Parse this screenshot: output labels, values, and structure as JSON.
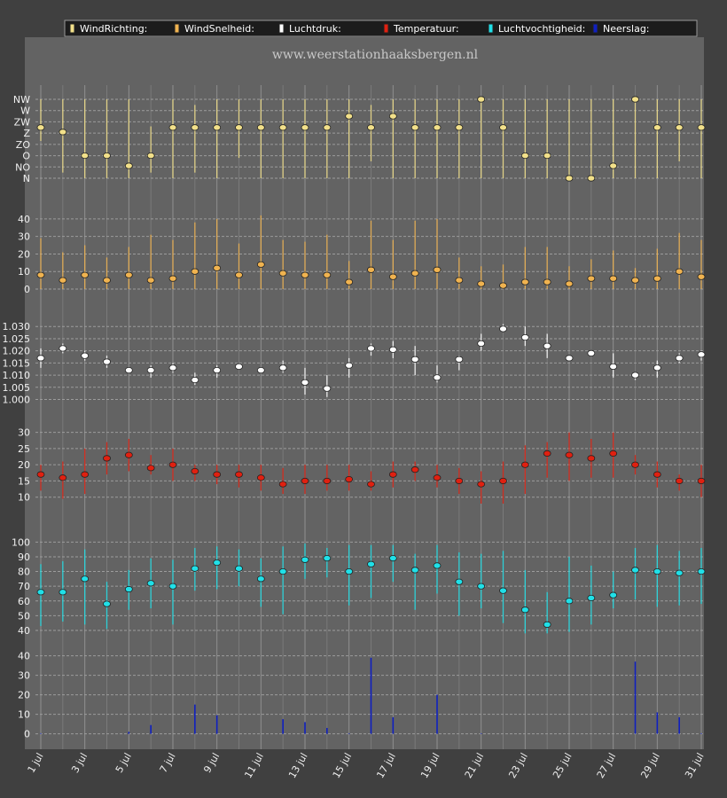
{
  "site_title": "www.weerstationhaaksbergen.nl",
  "legend": [
    {
      "label": "WindRichting:",
      "color": "#f2e08a"
    },
    {
      "label": "WindSnelheid:",
      "color": "#f0b350"
    },
    {
      "label": "Luchtdruk:",
      "color": "#ffffff"
    },
    {
      "label": "Temperatuur:",
      "color": "#e02010"
    },
    {
      "label": "Luchtvochtigheid:",
      "color": "#20e0e8"
    },
    {
      "label": "Neerslag:",
      "color": "#1020c0"
    }
  ],
  "x_tick_labels": [
    "1 jul",
    "3 jul",
    "5 jul",
    "7 jul",
    "9 jul",
    "11 jul",
    "13 jul",
    "15 jul",
    "17 jul",
    "19 jul",
    "21 jul",
    "23 jul",
    "25 jul",
    "27 jul",
    "29 jul",
    "31 jul"
  ],
  "chart_data": [
    {
      "type": "scatter",
      "name": "WindRichting",
      "x": [
        1,
        2,
        3,
        4,
        5,
        6,
        7,
        8,
        9,
        10,
        11,
        12,
        13,
        14,
        15,
        16,
        17,
        18,
        19,
        20,
        21,
        22,
        23,
        24,
        25,
        26,
        27,
        28,
        29,
        30,
        31
      ],
      "y_tick_labels": [
        "N",
        "NO",
        "O",
        "ZO",
        "Z",
        "ZW",
        "W",
        "NW"
      ],
      "ylim": [
        0,
        7
      ],
      "values": [
        4.5,
        4.1,
        2,
        2,
        1.1,
        2,
        4.5,
        4.5,
        4.5,
        4.5,
        4.5,
        4.5,
        4.5,
        4.5,
        5.5,
        4.5,
        5.5,
        4.5,
        4.5,
        4.5,
        7,
        4.5,
        2,
        2,
        0,
        0,
        1.1,
        7,
        4.5,
        4.5,
        4.5
      ],
      "low": [
        3.3,
        0.5,
        0,
        0,
        0,
        0.5,
        0,
        0.5,
        0,
        1.8,
        0,
        0,
        0,
        0,
        0,
        1.5,
        0,
        0,
        0,
        0,
        0,
        0,
        0,
        0,
        0,
        0,
        0,
        0,
        0,
        1.5,
        0
      ],
      "high": [
        7,
        7,
        7,
        7,
        7,
        4.6,
        7,
        6.5,
        7,
        7,
        7,
        7,
        7,
        7,
        7,
        6.5,
        7,
        7,
        7,
        7,
        7,
        7,
        7,
        7,
        7,
        7,
        7,
        7,
        7,
        7,
        7
      ],
      "color": "#f2e08a"
    },
    {
      "type": "scatter",
      "name": "WindSnelheid",
      "x": [
        1,
        2,
        3,
        4,
        5,
        6,
        7,
        8,
        9,
        10,
        11,
        12,
        13,
        14,
        15,
        16,
        17,
        18,
        19,
        20,
        21,
        22,
        23,
        24,
        25,
        26,
        27,
        28,
        29,
        30,
        31
      ],
      "yticks": [
        0,
        10,
        20,
        30,
        40
      ],
      "ylim": [
        0,
        45
      ],
      "values": [
        8,
        5,
        8,
        5,
        8,
        5,
        6,
        10,
        12,
        8,
        14,
        9,
        8,
        8,
        4,
        11,
        7,
        9,
        11,
        5,
        3,
        2,
        4,
        4,
        3,
        6,
        6,
        5,
        6,
        10,
        7
      ],
      "low": [
        0,
        0,
        0,
        0,
        0,
        0,
        0,
        0,
        0,
        0,
        0,
        0,
        0,
        0,
        0,
        0,
        0,
        0,
        0,
        0,
        0,
        0,
        0,
        0,
        0,
        0,
        0,
        0,
        0,
        0,
        0
      ],
      "high": [
        29,
        21,
        25,
        18,
        24,
        31,
        28,
        38,
        40,
        26,
        42,
        28,
        27,
        31,
        16,
        39,
        28,
        39,
        40,
        18,
        13,
        14,
        24,
        24,
        13,
        17,
        22,
        12,
        23,
        32,
        28
      ],
      "color": "#f0b350"
    },
    {
      "type": "scatter",
      "name": "Luchtdruk",
      "x": [
        1,
        2,
        3,
        4,
        5,
        6,
        7,
        8,
        9,
        10,
        11,
        12,
        13,
        14,
        15,
        16,
        17,
        18,
        19,
        20,
        21,
        22,
        23,
        24,
        25,
        26,
        27,
        28,
        29,
        30,
        31
      ],
      "yticks": [
        1.0,
        1.005,
        1.01,
        1.015,
        1.02,
        1.025,
        1.03
      ],
      "ylim": [
        0.998,
        1.033
      ],
      "values": [
        1.017,
        1.021,
        1.018,
        1.0155,
        1.012,
        1.012,
        1.013,
        1.008,
        1.012,
        1.0135,
        1.012,
        1.013,
        1.007,
        1.0045,
        1.014,
        1.021,
        1.0205,
        1.0165,
        1.009,
        1.0165,
        1.023,
        1.029,
        1.0255,
        1.022,
        1.017,
        1.019,
        1.0135,
        1.01,
        1.013,
        1.017,
        1.0185
      ],
      "low": [
        1.013,
        1.019,
        1.016,
        1.013,
        1.011,
        1.009,
        1.011,
        1.006,
        1.009,
        1.013,
        1.011,
        1.011,
        1.002,
        1.001,
        1.009,
        1.018,
        1.017,
        1.01,
        1.007,
        1.012,
        1.02,
        1.028,
        1.022,
        1.017,
        1.016,
        1.018,
        1.009,
        1.008,
        1.009,
        1.015,
        1.016
      ],
      "high": [
        1.021,
        1.023,
        1.02,
        1.018,
        1.013,
        1.014,
        1.015,
        1.011,
        1.014,
        1.014,
        1.013,
        1.016,
        1.013,
        1.01,
        1.017,
        1.023,
        1.024,
        1.022,
        1.014,
        1.018,
        1.027,
        1.031,
        1.03,
        1.027,
        1.018,
        1.02,
        1.019,
        1.011,
        1.016,
        1.019,
        1.02
      ],
      "color": "#ffffff"
    },
    {
      "type": "scatter",
      "name": "Temperatuur",
      "x": [
        1,
        2,
        3,
        4,
        5,
        6,
        7,
        8,
        9,
        10,
        11,
        12,
        13,
        14,
        15,
        16,
        17,
        18,
        19,
        20,
        21,
        22,
        23,
        24,
        25,
        26,
        27,
        28,
        29,
        30,
        31
      ],
      "yticks": [
        10,
        15,
        20,
        25,
        30
      ],
      "ylim": [
        8,
        31
      ],
      "values": [
        17,
        16,
        17,
        22,
        23,
        19,
        20,
        18,
        17,
        17,
        16,
        14,
        15,
        15,
        15.5,
        14,
        17,
        18.5,
        16,
        15,
        14,
        15,
        20,
        23.5,
        23,
        22,
        23.5,
        20,
        17,
        15,
        15
      ],
      "low": [
        12,
        9.5,
        11,
        17,
        18,
        17,
        15,
        15,
        14,
        13,
        12,
        11,
        11,
        12,
        12,
        12,
        13,
        15,
        13,
        11,
        8,
        8,
        11,
        16,
        15,
        16,
        16,
        17,
        13,
        12,
        10
      ],
      "high": [
        20,
        21,
        25,
        27,
        28,
        23,
        25,
        20,
        20,
        20,
        20,
        19,
        20,
        20,
        20,
        18,
        21,
        21,
        20,
        19,
        18,
        21,
        26,
        27,
        30,
        28,
        30,
        23,
        21,
        17,
        20
      ],
      "color": "#e02010"
    },
    {
      "type": "scatter",
      "name": "Luchtvochtigheid",
      "x": [
        1,
        2,
        3,
        4,
        5,
        6,
        7,
        8,
        9,
        10,
        11,
        12,
        13,
        14,
        15,
        16,
        17,
        18,
        19,
        20,
        21,
        22,
        23,
        24,
        25,
        26,
        27,
        28,
        29,
        30,
        31
      ],
      "yticks": [
        40,
        50,
        60,
        70,
        80,
        90,
        100
      ],
      "ylim": [
        37,
        102
      ],
      "values": [
        66,
        66,
        75,
        58,
        68,
        72,
        70,
        82,
        86,
        82,
        75,
        80,
        88,
        89,
        80,
        85,
        89,
        81,
        84,
        73,
        70,
        67,
        54,
        44,
        60,
        62,
        64,
        81,
        80,
        79,
        80
      ],
      "low": [
        43,
        46,
        44,
        41,
        54,
        55,
        44,
        67,
        68,
        70,
        56,
        51,
        75,
        76,
        57,
        62,
        73,
        54,
        65,
        50,
        55,
        45,
        38,
        38,
        39,
        44,
        55,
        61,
        56,
        57,
        58
      ],
      "high": [
        85,
        87,
        95,
        73,
        81,
        89,
        88,
        96,
        97,
        95,
        89,
        97,
        99,
        96,
        98,
        98,
        98,
        92,
        98,
        93,
        92,
        94,
        81,
        66,
        90,
        84,
        80,
        96,
        98,
        94,
        96
      ],
      "color": "#20e0e8"
    },
    {
      "type": "bar",
      "name": "Neerslag",
      "x": [
        1,
        2,
        3,
        4,
        5,
        6,
        7,
        8,
        9,
        10,
        11,
        12,
        13,
        14,
        15,
        16,
        17,
        18,
        19,
        20,
        21,
        22,
        23,
        24,
        25,
        26,
        27,
        28,
        29,
        30,
        31
      ],
      "yticks": [
        0,
        10,
        20,
        30,
        40
      ],
      "ylim": [
        -2,
        43
      ],
      "values": [
        0.3,
        0,
        0,
        0,
        1,
        4.5,
        0,
        15,
        9.5,
        0,
        0,
        7.5,
        6,
        3,
        0.3,
        39,
        8.5,
        0,
        20,
        0,
        0.3,
        0,
        0,
        0,
        0,
        0,
        0,
        37,
        11,
        8.5,
        0.3
      ],
      "color": "#1020c0"
    }
  ]
}
